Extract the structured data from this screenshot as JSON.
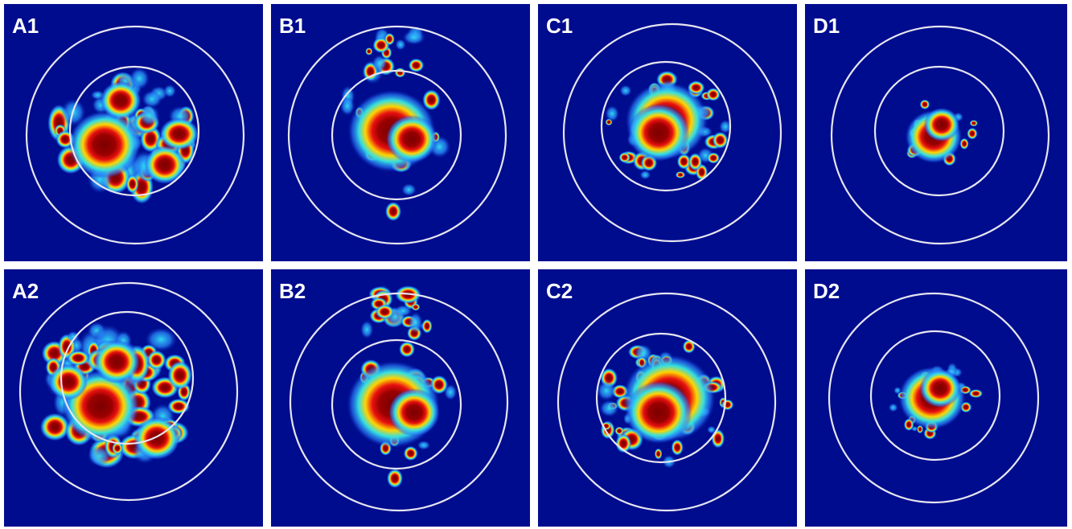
{
  "panels": [
    {
      "label": "A1"
    },
    {
      "label": "B1"
    },
    {
      "label": "C1"
    },
    {
      "label": "D1"
    },
    {
      "label": "A2"
    },
    {
      "label": "B2"
    },
    {
      "label": "C2"
    },
    {
      "label": "D2"
    }
  ]
}
